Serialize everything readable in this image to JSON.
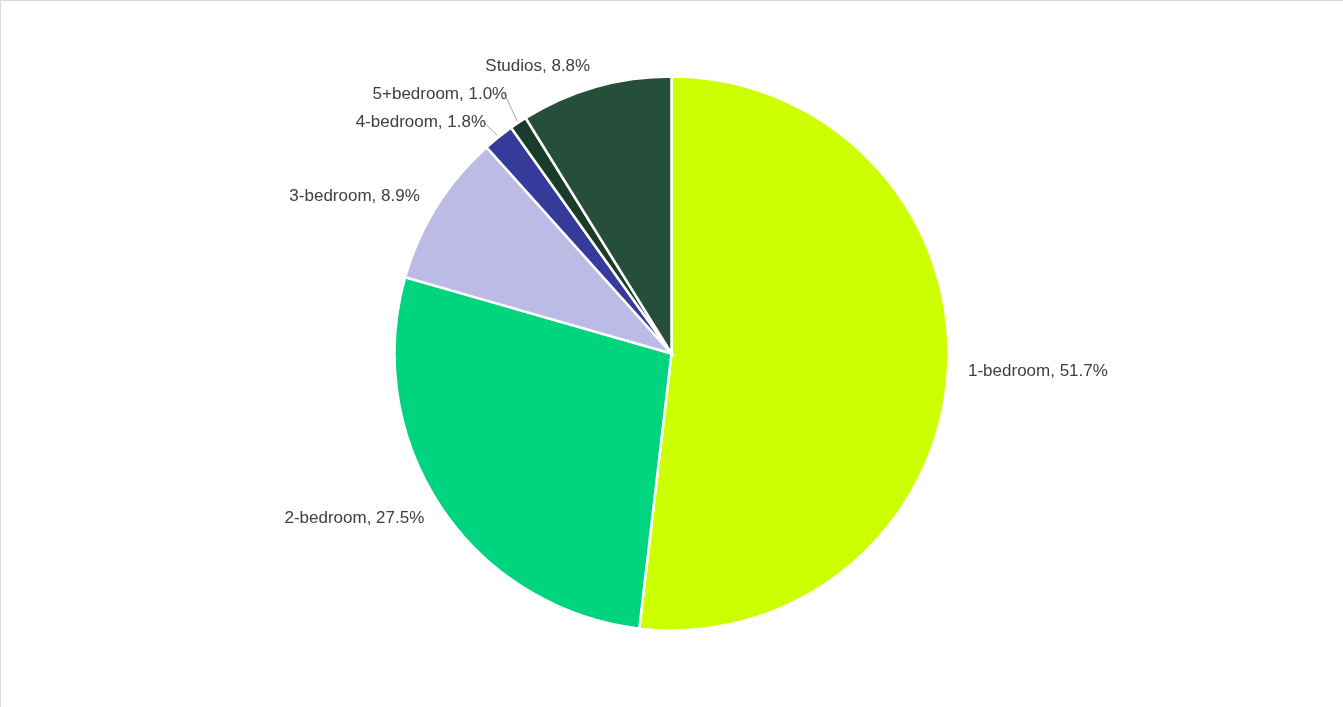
{
  "chart_data": {
    "type": "pie",
    "categories": [
      "1-bedroom",
      "2-bedroom",
      "3-bedroom",
      "4-bedroom",
      "5+bedroom",
      "Studios"
    ],
    "values": [
      51.7,
      27.5,
      8.9,
      1.8,
      1.0,
      8.8
    ],
    "value_labels": [
      "51.7%",
      "27.5%",
      "8.9%",
      "1.8%",
      "1.0%",
      "8.8%"
    ],
    "colors": [
      "#ccff00",
      "#00d47e",
      "#bcbbe6",
      "#363a9b",
      "#1b3b2a",
      "#264f3b"
    ]
  }
}
